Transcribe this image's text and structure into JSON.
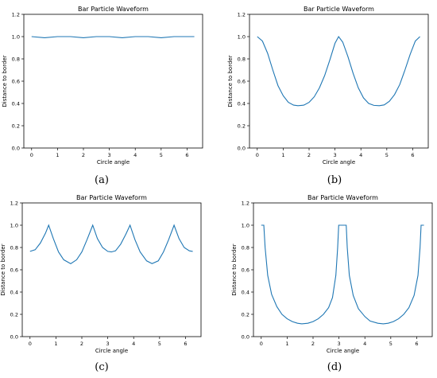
{
  "chart_data": [
    {
      "id": "a",
      "panel_label": "(a)",
      "type": "line",
      "title": "Bar Particle Waveform",
      "xlabel": "Circle angle",
      "ylabel": "Distance to border",
      "xlim": [
        -0.3,
        6.6
      ],
      "ylim": [
        0.0,
        1.2
      ],
      "xticks": [
        0,
        1,
        2,
        3,
        4,
        5,
        6
      ],
      "yticks": [
        0.0,
        0.2,
        0.4,
        0.6,
        0.8,
        1.0,
        1.2
      ],
      "color": "#1f77b4",
      "x": [
        0.0,
        0.5,
        1.0,
        1.5,
        2.0,
        2.5,
        3.0,
        3.5,
        4.0,
        4.5,
        5.0,
        5.5,
        6.0,
        6.28
      ],
      "y": [
        1.0,
        0.99,
        1.0,
        1.0,
        0.99,
        1.0,
        1.0,
        0.99,
        1.0,
        1.0,
        0.99,
        1.0,
        1.0,
        1.0
      ]
    },
    {
      "id": "b",
      "panel_label": "(b)",
      "type": "line",
      "title": "Bar Particle Waveform",
      "xlabel": "Circle angle",
      "ylabel": "Distance to border",
      "xlim": [
        -0.3,
        6.6
      ],
      "ylim": [
        0.0,
        1.2
      ],
      "xticks": [
        0,
        1,
        2,
        3,
        4,
        5,
        6
      ],
      "yticks": [
        0.0,
        0.2,
        0.4,
        0.6,
        0.8,
        1.0,
        1.2
      ],
      "color": "#1f77b4",
      "x": [
        0.0,
        0.2,
        0.4,
        0.6,
        0.8,
        1.0,
        1.2,
        1.4,
        1.57,
        1.8,
        2.0,
        2.2,
        2.4,
        2.6,
        2.8,
        3.0,
        3.14,
        3.3,
        3.5,
        3.7,
        3.9,
        4.1,
        4.3,
        4.5,
        4.71,
        4.9,
        5.1,
        5.3,
        5.5,
        5.7,
        5.9,
        6.1,
        6.28
      ],
      "y": [
        1.0,
        0.96,
        0.85,
        0.7,
        0.56,
        0.47,
        0.41,
        0.385,
        0.38,
        0.385,
        0.41,
        0.46,
        0.54,
        0.65,
        0.79,
        0.94,
        1.0,
        0.95,
        0.82,
        0.67,
        0.54,
        0.45,
        0.4,
        0.383,
        0.38,
        0.387,
        0.42,
        0.48,
        0.57,
        0.7,
        0.84,
        0.96,
        1.0
      ]
    },
    {
      "id": "c",
      "panel_label": "(c)",
      "type": "line",
      "title": "Bar Particle Waveform",
      "xlabel": "Circle angle",
      "ylabel": "Distance to border",
      "xlim": [
        -0.3,
        6.6
      ],
      "ylim": [
        0.0,
        1.2
      ],
      "xticks": [
        0,
        1,
        2,
        3,
        4,
        5,
        6
      ],
      "yticks": [
        0.0,
        0.2,
        0.4,
        0.6,
        0.8,
        1.0,
        1.2
      ],
      "color": "#1f77b4",
      "x": [
        0.0,
        0.2,
        0.4,
        0.6,
        0.72,
        0.9,
        1.1,
        1.3,
        1.57,
        1.8,
        2.0,
        2.2,
        2.42,
        2.6,
        2.8,
        3.0,
        3.14,
        3.3,
        3.5,
        3.7,
        3.86,
        4.05,
        4.25,
        4.5,
        4.71,
        4.95,
        5.15,
        5.35,
        5.56,
        5.75,
        5.95,
        6.15,
        6.28
      ],
      "y": [
        0.765,
        0.78,
        0.84,
        0.93,
        1.0,
        0.88,
        0.76,
        0.69,
        0.655,
        0.69,
        0.76,
        0.87,
        1.0,
        0.88,
        0.8,
        0.765,
        0.76,
        0.77,
        0.83,
        0.92,
        1.0,
        0.87,
        0.76,
        0.68,
        0.655,
        0.68,
        0.76,
        0.87,
        1.0,
        0.88,
        0.8,
        0.77,
        0.765
      ]
    },
    {
      "id": "d",
      "panel_label": "(d)",
      "type": "line",
      "title": "Bar Particle Waveform",
      "xlabel": "Circle angle",
      "ylabel": "Distance to border",
      "xlim": [
        -0.3,
        6.6
      ],
      "ylim": [
        0.0,
        1.2
      ],
      "xticks": [
        0,
        1,
        2,
        3,
        4,
        5,
        6
      ],
      "yticks": [
        0.0,
        0.2,
        0.4,
        0.6,
        0.8,
        1.0,
        1.2
      ],
      "color": "#1f77b4",
      "x": [
        0.0,
        0.05,
        0.1,
        0.15,
        0.25,
        0.4,
        0.6,
        0.8,
        1.0,
        1.2,
        1.4,
        1.57,
        1.8,
        2.0,
        2.2,
        2.4,
        2.6,
        2.75,
        2.88,
        2.95,
        2.99,
        3.05,
        3.14,
        3.22,
        3.28,
        3.32,
        3.4,
        3.55,
        3.75,
        4.0,
        4.2,
        4.5,
        4.71,
        4.9,
        5.1,
        5.3,
        5.5,
        5.7,
        5.9,
        6.05,
        6.13,
        6.17,
        6.22,
        6.28
      ],
      "y": [
        1.0,
        1.0,
        1.0,
        0.8,
        0.55,
        0.38,
        0.27,
        0.2,
        0.16,
        0.135,
        0.12,
        0.115,
        0.12,
        0.135,
        0.16,
        0.2,
        0.26,
        0.35,
        0.55,
        0.8,
        1.0,
        1.0,
        1.0,
        1.0,
        1.0,
        0.8,
        0.55,
        0.37,
        0.25,
        0.18,
        0.14,
        0.12,
        0.115,
        0.12,
        0.135,
        0.16,
        0.2,
        0.26,
        0.37,
        0.55,
        0.8,
        1.0,
        1.0,
        1.0
      ]
    }
  ]
}
